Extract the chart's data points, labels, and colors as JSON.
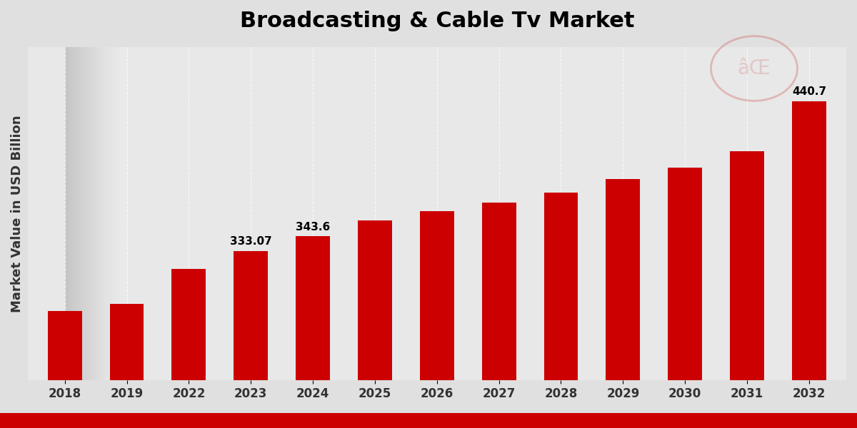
{
  "title": "Broadcasting & Cable Tv Market",
  "ylabel": "Market Value in USD Billion",
  "categories": [
    "2018",
    "2019",
    "2022",
    "2023",
    "2024",
    "2025",
    "2026",
    "2027",
    "2028",
    "2029",
    "2030",
    "2031",
    "2032"
  ],
  "values": [
    290,
    295,
    320,
    333.07,
    343.6,
    355,
    362,
    368,
    375,
    385,
    393,
    405,
    440.7
  ],
  "bar_color": "#CC0000",
  "background_gradient_start": "#e8e8e8",
  "background_gradient_end": "#f8f8f8",
  "bar_labels": [
    null,
    null,
    null,
    "333.07",
    "343.6",
    null,
    null,
    null,
    null,
    null,
    null,
    null,
    "440.7"
  ],
  "label_fontsize": 11,
  "title_fontsize": 22,
  "ylabel_fontsize": 13,
  "tick_fontsize": 12,
  "ylim_min": 240,
  "ylim_max": 480,
  "bottom_bar_color": "#CC0000",
  "bottom_bar_height": 0.04
}
